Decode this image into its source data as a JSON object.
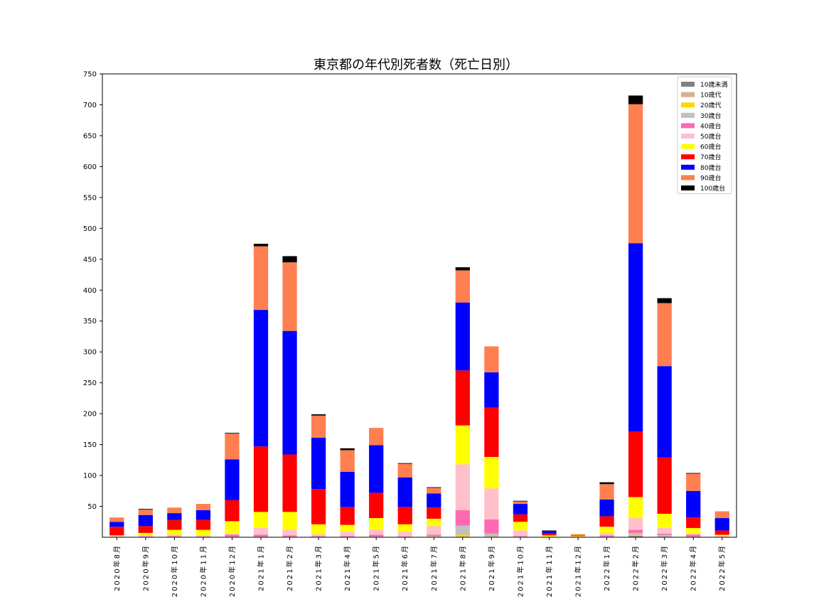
{
  "chart_data": {
    "type": "bar",
    "stacked": true,
    "title": "東京都の年代別死者数（死亡日別）",
    "xlabel": "",
    "ylabel": "",
    "ylim": [
      0,
      750
    ],
    "yticks": [
      50,
      100,
      150,
      200,
      250,
      300,
      350,
      400,
      450,
      500,
      550,
      600,
      650,
      700,
      750
    ],
    "grid": false,
    "legend_position": "top-right",
    "categories": [
      "2020年8月",
      "2020年9月",
      "2020年10月",
      "2020年11月",
      "2020年12月",
      "2021年1月",
      "2021年2月",
      "2021年3月",
      "2021年4月",
      "2021年5月",
      "2021年6月",
      "2021年7月",
      "2021年8月",
      "2021年9月",
      "2021年10月",
      "2021年11月",
      "2021年12月",
      "2022年1月",
      "2022年2月",
      "2022年3月",
      "2022年4月",
      "2022年5月"
    ],
    "series": [
      {
        "name": "10歳未満",
        "color": "#808080",
        "values": [
          0,
          0,
          0,
          0,
          0,
          0,
          0,
          0,
          0,
          0,
          0,
          0,
          0,
          0,
          0,
          0,
          0,
          0,
          2,
          0,
          0,
          0
        ]
      },
      {
        "name": "10歳代",
        "color": "#d2b48c",
        "values": [
          0,
          0,
          0,
          0,
          0,
          0,
          0,
          0,
          0,
          0,
          0,
          0,
          1,
          0,
          0,
          0,
          0,
          0,
          1,
          1,
          0,
          0
        ]
      },
      {
        "name": "20歳代",
        "color": "#ffd700",
        "values": [
          0,
          0,
          0,
          0,
          0,
          0,
          0,
          0,
          0,
          0,
          0,
          1,
          3,
          1,
          0,
          0,
          1,
          0,
          1,
          0,
          0,
          0
        ]
      },
      {
        "name": "30歳台",
        "color": "#c0c0c0",
        "values": [
          0,
          0,
          1,
          0,
          1,
          1,
          1,
          1,
          1,
          1,
          0,
          1,
          15,
          5,
          1,
          0,
          0,
          1,
          3,
          3,
          1,
          0
        ]
      },
      {
        "name": "40歳台",
        "color": "#ff69b4",
        "values": [
          0,
          1,
          1,
          1,
          3,
          3,
          2,
          1,
          1,
          3,
          1,
          2,
          25,
          23,
          1,
          0,
          0,
          2,
          5,
          2,
          3,
          0
        ]
      },
      {
        "name": "50歳台",
        "color": "#ffc0cb",
        "values": [
          2,
          2,
          2,
          2,
          2,
          11,
          9,
          3,
          7,
          8,
          8,
          14,
          74,
          50,
          9,
          1,
          0,
          4,
          19,
          9,
          2,
          2
        ]
      },
      {
        "name": "60歳台",
        "color": "#ffff00",
        "values": [
          1,
          4,
          8,
          9,
          20,
          26,
          29,
          16,
          11,
          19,
          12,
          12,
          63,
          51,
          14,
          2,
          1,
          10,
          34,
          23,
          9,
          2
        ]
      },
      {
        "name": "70歳台",
        "color": "#ff0000",
        "values": [
          14,
          11,
          16,
          16,
          34,
          106,
          93,
          57,
          29,
          41,
          28,
          18,
          89,
          80,
          12,
          3,
          1,
          17,
          106,
          91,
          17,
          7
        ]
      },
      {
        "name": "80歳台",
        "color": "#0000ff",
        "values": [
          8,
          18,
          11,
          16,
          66,
          221,
          200,
          83,
          57,
          77,
          48,
          23,
          110,
          57,
          17,
          4,
          0,
          27,
          305,
          148,
          43,
          20
        ]
      },
      {
        "name": "90歳台",
        "color": "#ff7f50",
        "values": [
          7,
          9,
          9,
          10,
          42,
          103,
          111,
          36,
          35,
          28,
          22,
          9,
          52,
          42,
          4,
          0,
          2,
          25,
          225,
          102,
          28,
          11
        ]
      },
      {
        "name": "100歳台",
        "color": "#000000",
        "values": [
          0,
          1,
          0,
          0,
          1,
          4,
          10,
          2,
          3,
          0,
          1,
          1,
          5,
          0,
          1,
          1,
          0,
          3,
          14,
          8,
          1,
          0
        ]
      }
    ]
  }
}
